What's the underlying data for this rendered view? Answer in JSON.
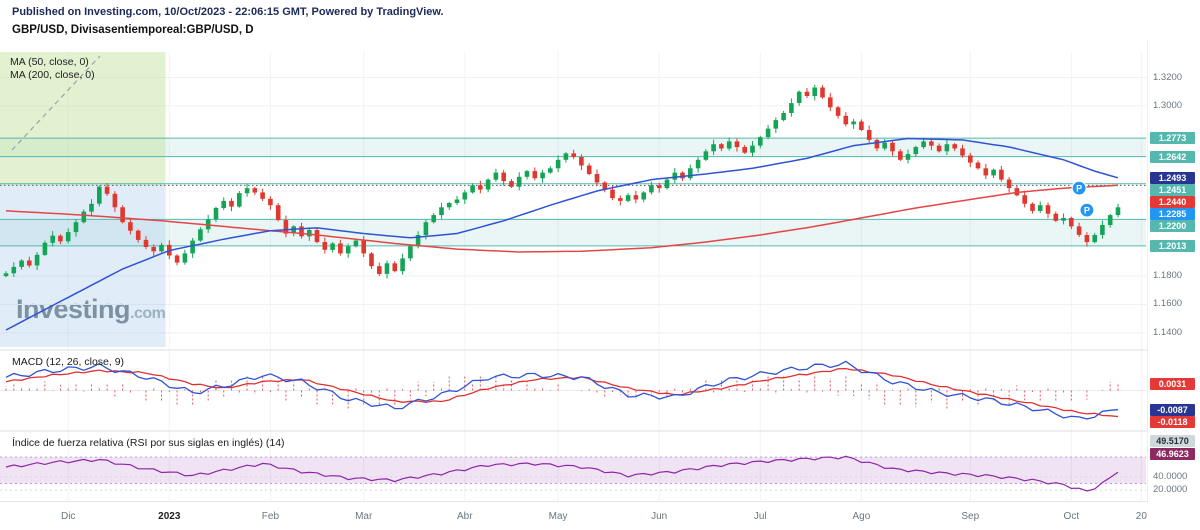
{
  "header": {
    "published_line": "Published on Investing.com, 10/Oct/2023 - 22:06:15 GMT, Powered by TradingView.",
    "symbol_line": "GBP/USD, Divisasentiemporeal:GBP/USD, D"
  },
  "legend": {
    "ma50": "MA (50, close, 0)",
    "ma200": "MA (200, close, 0)"
  },
  "panels": {
    "macd_label": "MACD (12, 26, close, 9)",
    "rsi_label": "Índice de fuerza relativa (RSI por sus siglas en inglés) (14)"
  },
  "watermark": {
    "main": "Investing",
    "suffix": ".com"
  },
  "colors": {
    "up_candle": "#13a555",
    "down_candle": "#e0382e",
    "ma50": "#2f53d6",
    "ma200": "#e54545",
    "macd_line": "#2f53d6",
    "macd_signal": "#e03131",
    "macd_hist": "#e0565e",
    "rsi_line": "#8e24aa",
    "rsi_band": "rgba(142,36,170,0.13)",
    "teal_level": "#54b8af",
    "teal_band": "rgba(84,184,175,0.13)",
    "badge_teal": "#54b8af",
    "badge_navy": "#283593",
    "badge_red": "#e53935",
    "badge_blue": "#2196f3",
    "badge_purple": "#8e2a62",
    "badge_gray": "#cfd8dc",
    "highlight_green": "rgba(190,225,150,0.45)",
    "highlight_blue": "rgba(173,205,235,0.38)"
  },
  "chart_data": [
    {
      "type": "candlestick",
      "title": "GBP/USD, D",
      "ylim": [
        1.13,
        1.338
      ],
      "first_open": 1.18,
      "wick_pattern": [
        0.0015,
        0.0032,
        0.0009,
        0.0026,
        0.0019
      ],
      "closes": [
        1.182,
        1.1865,
        1.191,
        1.1875,
        1.195,
        1.2035,
        1.2085,
        1.2045,
        1.211,
        1.218,
        1.2255,
        1.231,
        1.243,
        1.238,
        1.2285,
        1.218,
        1.212,
        1.2055,
        1.2005,
        1.1975,
        1.202,
        1.1945,
        1.1895,
        1.196,
        1.205,
        1.213,
        1.22,
        1.228,
        1.233,
        1.229,
        1.2385,
        1.242,
        1.239,
        1.2345,
        1.23,
        1.2195,
        1.21,
        1.215,
        1.208,
        1.2125,
        1.204,
        1.1985,
        1.203,
        1.196,
        1.201,
        1.205,
        1.196,
        1.187,
        1.1815,
        1.189,
        1.1835,
        1.1925,
        1.201,
        1.209,
        1.218,
        1.223,
        1.2285,
        1.2315,
        1.234,
        1.239,
        1.244,
        1.241,
        1.248,
        1.253,
        1.247,
        1.243,
        1.25,
        1.254,
        1.249,
        1.253,
        1.256,
        1.262,
        1.2665,
        1.264,
        1.258,
        1.252,
        1.246,
        1.241,
        1.235,
        1.233,
        1.237,
        1.234,
        1.239,
        1.244,
        1.242,
        1.248,
        1.253,
        1.249,
        1.256,
        1.262,
        1.268,
        1.273,
        1.27,
        1.275,
        1.271,
        1.267,
        1.272,
        1.278,
        1.284,
        1.29,
        1.295,
        1.302,
        1.31,
        1.307,
        1.313,
        1.306,
        1.299,
        1.293,
        1.287,
        1.289,
        1.283,
        1.276,
        1.27,
        1.274,
        1.268,
        1.262,
        1.266,
        1.271,
        1.275,
        1.272,
        1.268,
        1.273,
        1.27,
        1.265,
        1.26,
        1.256,
        1.251,
        1.255,
        1.248,
        1.242,
        1.237,
        1.231,
        1.226,
        1.23,
        1.224,
        1.219,
        1.221,
        1.215,
        1.209,
        1.204,
        1.209,
        1.216,
        1.223,
        1.2285
      ],
      "ma50_keypoints": [
        [
          0,
          1.142
        ],
        [
          8,
          1.165
        ],
        [
          15,
          1.185
        ],
        [
          21,
          1.198
        ],
        [
          28,
          1.206
        ],
        [
          34,
          1.212
        ],
        [
          40,
          1.214
        ],
        [
          46,
          1.21
        ],
        [
          52,
          1.207
        ],
        [
          58,
          1.21
        ],
        [
          64,
          1.219
        ],
        [
          70,
          1.23
        ],
        [
          76,
          1.24
        ],
        [
          83,
          1.248
        ],
        [
          90,
          1.252
        ],
        [
          96,
          1.256
        ],
        [
          103,
          1.263
        ],
        [
          109,
          1.272
        ],
        [
          116,
          1.277
        ],
        [
          123,
          1.276
        ],
        [
          129,
          1.271
        ],
        [
          136,
          1.262
        ],
        [
          140,
          1.254
        ],
        [
          143,
          1.2493
        ]
      ],
      "ma200_keypoints": [
        [
          0,
          1.226
        ],
        [
          10,
          1.223
        ],
        [
          20,
          1.219
        ],
        [
          30,
          1.214
        ],
        [
          40,
          1.209
        ],
        [
          50,
          1.203
        ],
        [
          58,
          1.199
        ],
        [
          66,
          1.197
        ],
        [
          74,
          1.1975
        ],
        [
          83,
          1.2
        ],
        [
          90,
          1.204
        ],
        [
          97,
          1.209
        ],
        [
          104,
          1.215
        ],
        [
          110,
          1.221
        ],
        [
          117,
          1.228
        ],
        [
          124,
          1.234
        ],
        [
          130,
          1.239
        ],
        [
          136,
          1.242
        ],
        [
          143,
          1.244
        ]
      ],
      "levels": {
        "plain": [
          1.32,
          1.3,
          1.18,
          1.16,
          1.14
        ],
        "teal_lines": [
          1.2773,
          1.2642,
          1.2451,
          1.22,
          1.2013
        ],
        "teal_bands": [
          [
            1.2642,
            1.2773
          ],
          [
            1.2013,
            1.22
          ]
        ],
        "dotted_line": 1.244,
        "last_price": 1.2285,
        "ma50_value": 1.2493,
        "ma200_value": 1.244
      },
      "highlight": {
        "end_index": 20,
        "split_price": 1.244
      },
      "markers": [
        {
          "label": "P",
          "index": 138,
          "price": 1.242
        },
        {
          "label": "P",
          "index": 139,
          "price": 1.2265
        }
      ],
      "y_axis_labels": [
        {
          "text": "1.3200",
          "type": "plain",
          "value": 1.32
        },
        {
          "text": "1.3000",
          "type": "plain",
          "value": 1.3
        },
        {
          "text": "1.2773",
          "type": "teal",
          "value": 1.2773
        },
        {
          "text": "1.2642",
          "type": "teal",
          "value": 1.2642
        },
        {
          "text": "1.2493",
          "type": "navy",
          "value": 1.2493
        },
        {
          "text": "1.2451",
          "type": "teal",
          "value": 1.2451
        },
        {
          "text": "1.2440",
          "type": "red",
          "value": 1.244
        },
        {
          "text": "1.2285",
          "type": "blue",
          "value": 1.2285
        },
        {
          "text": "1.2200",
          "type": "teal",
          "value": 1.22
        },
        {
          "text": "1.2013",
          "type": "teal",
          "value": 1.2013
        },
        {
          "text": "1.1800",
          "type": "plain",
          "value": 1.18
        },
        {
          "text": "1.1600",
          "type": "plain",
          "value": 1.16
        },
        {
          "text": "1.1400",
          "type": "plain",
          "value": 1.14
        }
      ],
      "x_ticks": [
        {
          "label": "Dic",
          "index": 8
        },
        {
          "label": "2023",
          "index": 21,
          "bold": true
        },
        {
          "label": "Feb",
          "index": 34
        },
        {
          "label": "Mar",
          "index": 46
        },
        {
          "label": "Abr",
          "index": 59
        },
        {
          "label": "May",
          "index": 71
        },
        {
          "label": "Jun",
          "index": 84
        },
        {
          "label": "Jul",
          "index": 97
        },
        {
          "label": "Ago",
          "index": 110
        },
        {
          "label": "Sep",
          "index": 124
        },
        {
          "label": "Oct",
          "index": 137
        },
        {
          "label": "20",
          "index": 146
        }
      ]
    },
    {
      "type": "line+histogram",
      "title": "MACD (12, 26, close, 9)",
      "ylim": [
        -0.017,
        0.017
      ],
      "macd_keypoints": [
        [
          0,
          0.006
        ],
        [
          6,
          0.009
        ],
        [
          12,
          0.011
        ],
        [
          18,
          0.006
        ],
        [
          24,
          -0.001
        ],
        [
          28,
          0.002
        ],
        [
          33,
          0.007
        ],
        [
          38,
          0.004
        ],
        [
          44,
          -0.004
        ],
        [
          50,
          -0.008
        ],
        [
          56,
          -0.002
        ],
        [
          62,
          0.006
        ],
        [
          68,
          0.007
        ],
        [
          74,
          0.006
        ],
        [
          80,
          -0.002
        ],
        [
          86,
          -0.003
        ],
        [
          92,
          0.004
        ],
        [
          98,
          0.008
        ],
        [
          104,
          0.011
        ],
        [
          108,
          0.012
        ],
        [
          114,
          0.004
        ],
        [
          120,
          -0.001
        ],
        [
          126,
          -0.004
        ],
        [
          132,
          -0.008
        ],
        [
          138,
          -0.013
        ],
        [
          143,
          -0.0087
        ]
      ],
      "signal_keypoints": [
        [
          0,
          0.004
        ],
        [
          6,
          0.007
        ],
        [
          12,
          0.009
        ],
        [
          18,
          0.008
        ],
        [
          24,
          0.003
        ],
        [
          28,
          0.001
        ],
        [
          33,
          0.004
        ],
        [
          38,
          0.005
        ],
        [
          44,
          0.0
        ],
        [
          50,
          -0.005
        ],
        [
          56,
          -0.005
        ],
        [
          62,
          0.001
        ],
        [
          68,
          0.005
        ],
        [
          74,
          0.006
        ],
        [
          80,
          0.001
        ],
        [
          86,
          -0.002
        ],
        [
          92,
          0.001
        ],
        [
          98,
          0.005
        ],
        [
          104,
          0.008
        ],
        [
          108,
          0.01
        ],
        [
          114,
          0.007
        ],
        [
          120,
          0.002
        ],
        [
          126,
          -0.002
        ],
        [
          132,
          -0.006
        ],
        [
          138,
          -0.01
        ],
        [
          143,
          -0.0118
        ]
      ],
      "last_values": {
        "histogram": 0.0031,
        "macd": -0.0087,
        "signal": -0.0118
      },
      "y_axis_labels": [
        {
          "text": "0.0031",
          "type": "red",
          "value": 0.0031
        },
        {
          "text": "-0.0087",
          "type": "navy",
          "value": -0.0087
        },
        {
          "text": "-0.0118",
          "type": "red",
          "value": -0.0118
        }
      ]
    },
    {
      "type": "line",
      "title": "RSI (14)",
      "ylim": [
        5,
        105
      ],
      "band": [
        30,
        70
      ],
      "gridlines": [
        40,
        20
      ],
      "keypoints": [
        [
          0,
          55
        ],
        [
          6,
          62
        ],
        [
          12,
          66
        ],
        [
          18,
          52
        ],
        [
          24,
          42
        ],
        [
          28,
          50
        ],
        [
          33,
          60
        ],
        [
          38,
          48
        ],
        [
          44,
          38
        ],
        [
          50,
          35
        ],
        [
          56,
          45
        ],
        [
          62,
          58
        ],
        [
          68,
          60
        ],
        [
          74,
          55
        ],
        [
          80,
          42
        ],
        [
          86,
          48
        ],
        [
          92,
          58
        ],
        [
          98,
          64
        ],
        [
          104,
          68
        ],
        [
          108,
          70
        ],
        [
          114,
          52
        ],
        [
          120,
          46
        ],
        [
          126,
          42
        ],
        [
          132,
          35
        ],
        [
          136,
          28
        ],
        [
          139,
          18
        ],
        [
          141,
          30
        ],
        [
          143,
          46.9623
        ]
      ],
      "last_value": 46.9623,
      "y_axis_labels": [
        {
          "text": "49.5170",
          "type": "gray",
          "value": 49.517
        },
        {
          "text": "46.9623",
          "type": "purple",
          "value": 46.9623
        },
        {
          "text": "40.0000",
          "type": "plain",
          "value": 40
        },
        {
          "text": "20.0000",
          "type": "plain",
          "value": 20
        }
      ]
    }
  ]
}
